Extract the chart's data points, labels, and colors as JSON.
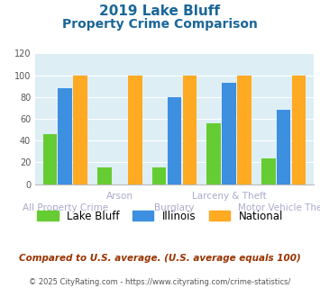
{
  "title_line1": "2019 Lake Bluff",
  "title_line2": "Property Crime Comparison",
  "groups": [
    "All Property Crime",
    "Arson",
    "Burglary",
    "Larceny & Theft",
    "Motor Vehicle Theft"
  ],
  "lake_bluff": [
    46,
    15,
    15,
    56,
    24
  ],
  "illinois": [
    88,
    0,
    80,
    93,
    68
  ],
  "national": [
    100,
    100,
    100,
    100,
    100
  ],
  "color_lake_bluff": "#66cc33",
  "color_illinois": "#3d8fe0",
  "color_national": "#ffaa22",
  "color_title": "#1a6699",
  "ylim": [
    0,
    120
  ],
  "yticks": [
    0,
    20,
    40,
    60,
    80,
    100,
    120
  ],
  "bg_color": "#ddeef5",
  "legend_labels": [
    "Lake Bluff",
    "Illinois",
    "National"
  ],
  "footnote1": "Compared to U.S. average. (U.S. average equals 100)",
  "footnote2_plain": "© 2025 CityRating.com - ",
  "footnote2_link": "https://www.cityrating.com/crime-statistics/",
  "color_footnote1": "#993300",
  "color_footnote2": "#555555",
  "color_footnote2_link": "#3399cc",
  "xlabel_color_top": "#aaaacc",
  "xlabel_color_bottom": "#aaaacc"
}
